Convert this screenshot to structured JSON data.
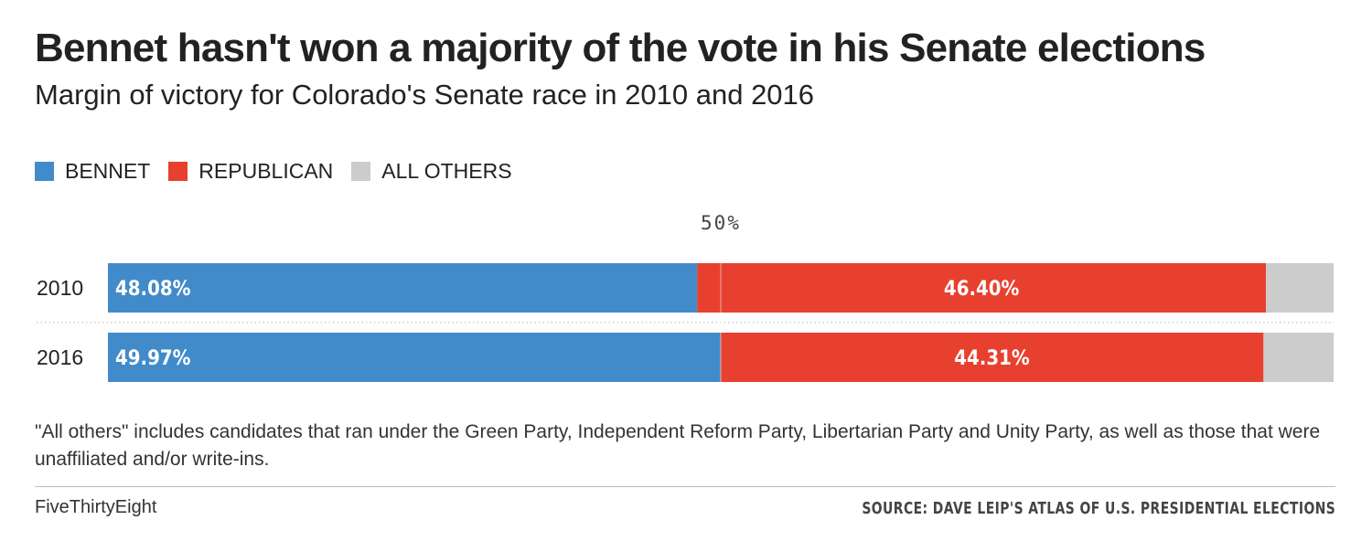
{
  "title": "Bennet hasn't won a majority of the vote in his Senate elections",
  "subtitle": "Margin of victory for Colorado's Senate race in 2010 and 2016",
  "legend": [
    {
      "label": "BENNET",
      "color": "#428bca"
    },
    {
      "label": "REPUBLICAN",
      "color": "#e8402f"
    },
    {
      "label": "ALL OTHERS",
      "color": "#cccccc"
    }
  ],
  "note": "\"All others\" includes candidates that ran under the Green Party, Independent Reform Party, Libertarian Party and Unity Party, as well as those that were unaffiliated and/or write-ins.",
  "credit": "FiveThirtyEight",
  "source": "SOURCE: DAVE LEIP'S ATLAS OF U.S. PRESIDENTIAL ELECTIONS",
  "chart_data": {
    "type": "bar",
    "orientation": "horizontal",
    "stacked": true,
    "categories": [
      "2010",
      "2016"
    ],
    "series": [
      {
        "name": "BENNET",
        "values": [
          48.08,
          49.97
        ],
        "labels": [
          "48.08%",
          "49.97%"
        ],
        "color": "#428bca"
      },
      {
        "name": "REPUBLICAN",
        "values": [
          46.4,
          44.31
        ],
        "labels": [
          "46.40%",
          "44.31%"
        ],
        "color": "#e8402f"
      },
      {
        "name": "ALL OTHERS",
        "values": [
          5.52,
          5.72
        ],
        "labels": [
          "",
          ""
        ],
        "color": "#cccccc"
      }
    ],
    "reference_line": {
      "value": 50,
      "label": "50%"
    },
    "xlim": [
      0,
      100
    ]
  }
}
